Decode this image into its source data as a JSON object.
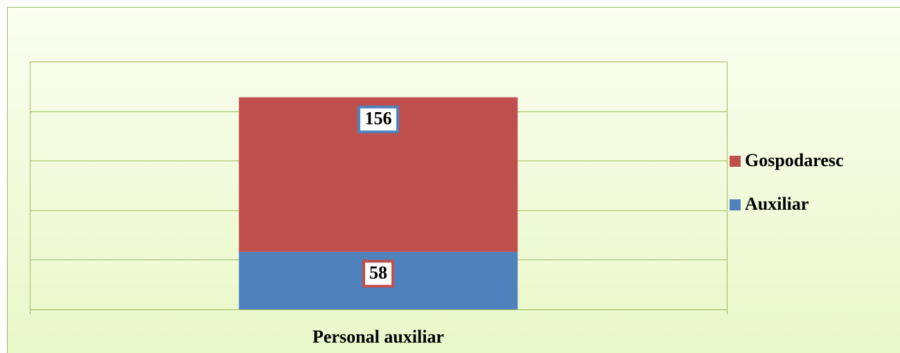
{
  "chart_data": {
    "type": "bar",
    "stacked": true,
    "categories": [
      "Personal auxiliar"
    ],
    "series": [
      {
        "name": "Auxiliar",
        "color": "#4f81bd",
        "values": [
          58
        ]
      },
      {
        "name": "Gospodaresc",
        "color": "#c0504d",
        "values": [
          156
        ]
      }
    ],
    "ylim": [
      0,
      250
    ],
    "yticks": [
      0,
      50,
      100,
      150,
      200,
      250
    ],
    "grid": true,
    "legend": "right"
  }
}
